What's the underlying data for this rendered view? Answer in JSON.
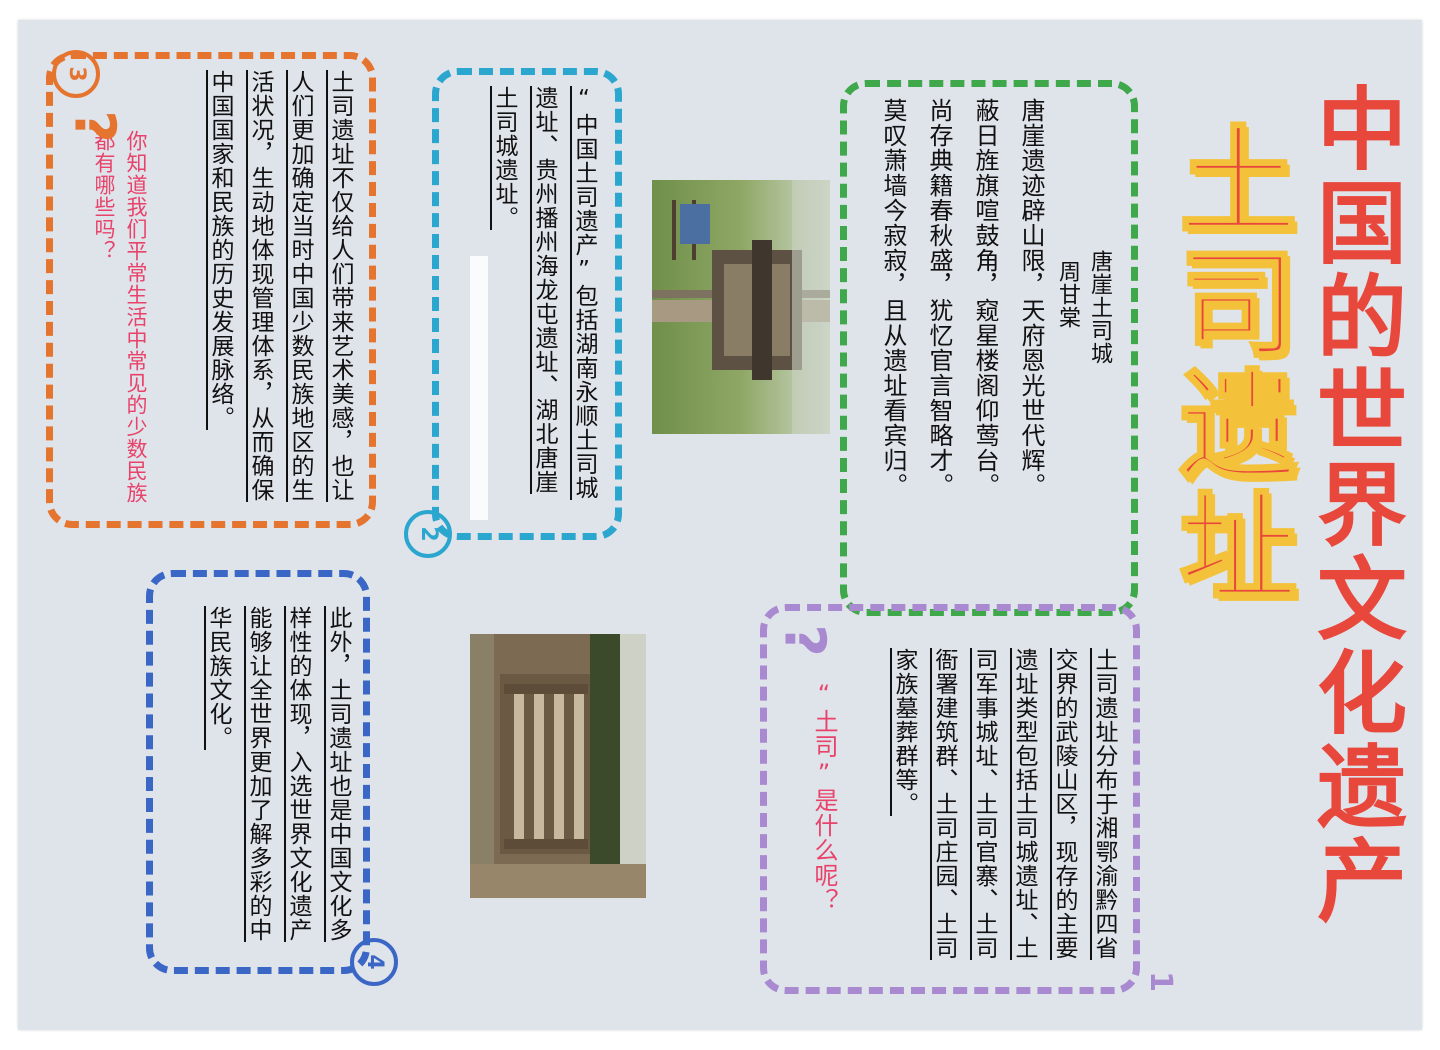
{
  "title": {
    "line1": "中国的世界文化遗产",
    "line2": "土司遗址"
  },
  "poem": {
    "title": "唐崖土司城",
    "author": "周甘棠",
    "lines": [
      "唐崖遗迹辟山限，天府恩光世代辉。",
      "蔽日旌旗喧鼓角，窥星楼阁仰莺台。",
      "尚存典籍春秋盛，犹忆官言智略才。",
      "莫叹萧墙今寂寂，且从遗址看宾归。"
    ]
  },
  "section1": {
    "number": "1",
    "question": "“土司”是什么呢？",
    "body": "土司遗址分布于湘鄂渝黔四省交界的武陵山区，现存的主要遗址类型包括土司城遗址、土司军事城址、土司官寨、土司衙署建筑群、土司庄园、土司家族墓葬群等。"
  },
  "section2": {
    "number": "2",
    "body": "“中国土司遗产”包括湖南永顺土司城遗址、贵州播州海龙屯遗址、湖北唐崖土司城遗址。"
  },
  "section3": {
    "number": "3",
    "question": "你知道我们平常生活中常见的少数民族都有哪些吗？",
    "body": "土司遗址不仅给人们带来艺术美感，也让人们更加确定当时中国少数民族地区的生活状况，生动地体现管理体系，从而确保中国国家和民族的历史发展脉络。"
  },
  "section4": {
    "number": "4",
    "body": "此外，土司遗址也是中国文化多样性的体现，入选世界文化遗产能够让全世界更加了解多彩的中华民族文化。"
  },
  "colors": {
    "paper": "#dfe3ea",
    "title_red": "#e8473c",
    "title_yellow": "#f4c23a",
    "green": "#3fa84a",
    "cyan": "#2aa6cf",
    "orange": "#e5742e",
    "blue": "#3a66c6",
    "purple": "#a98ad0",
    "question_red": "#e8436a"
  },
  "icons": {
    "question": "question-mark-icon"
  }
}
